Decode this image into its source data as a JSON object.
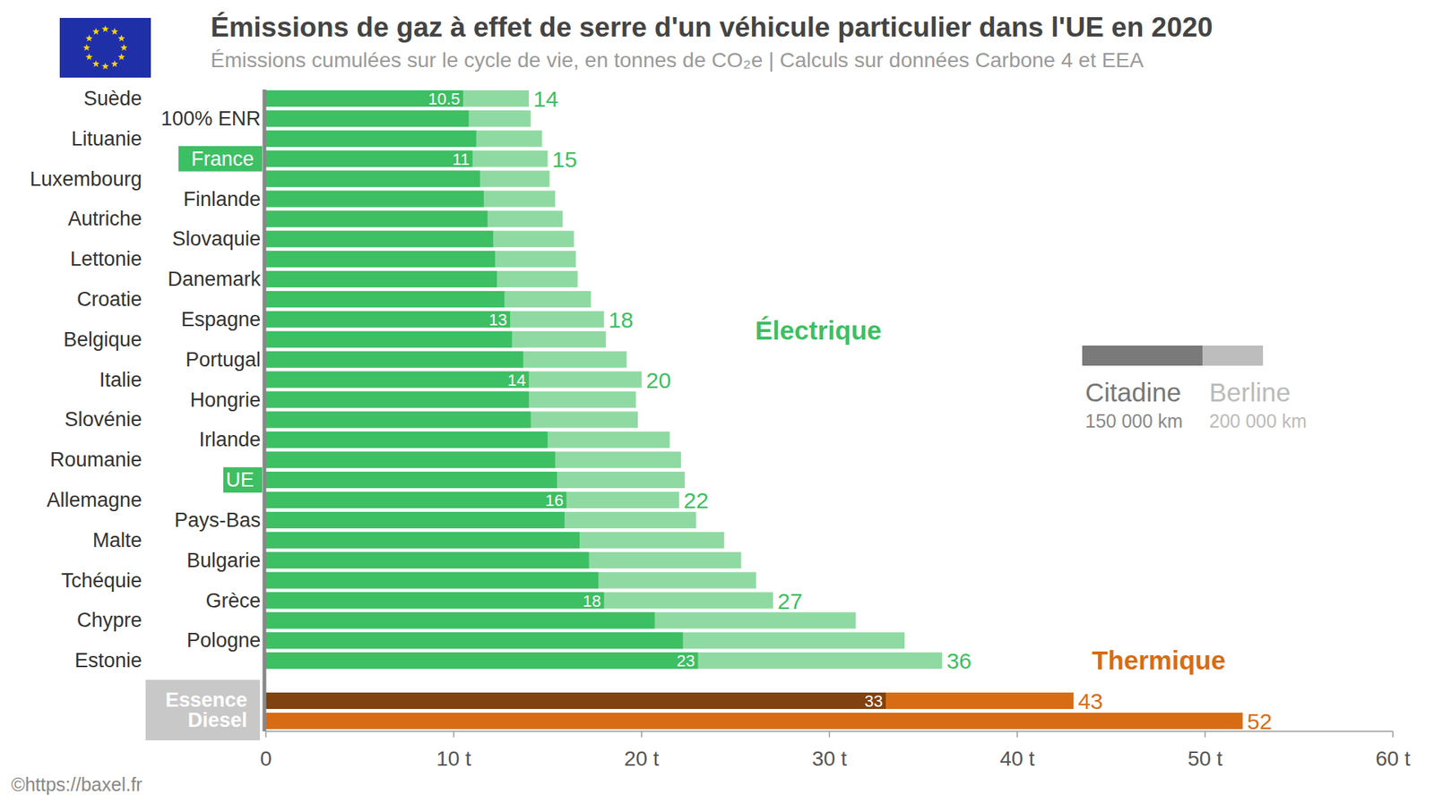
{
  "chart_data": {
    "type": "bar",
    "orientation": "horizontal",
    "title": "Émissions de gaz à effet de serre d'un véhicule particulier dans l'UE en 2020",
    "subtitle": "Émissions cumulées sur le cycle de vie, en tonnes de CO₂e  |  Calculs sur données Carbone 4 et EEA",
    "source": "©https://baxel.fr",
    "annotations": [
      "Électrique",
      "Thermique"
    ],
    "categories": [
      "Suède",
      "100% ENR",
      "Lituanie",
      "France",
      "Luxembourg",
      "Finlande",
      "Autriche",
      "Slovaquie",
      "Lettonie",
      "Danemark",
      "Croatie",
      "Espagne",
      "Belgique",
      "Portugal",
      "Italie",
      "Hongrie",
      "Slovénie",
      "Irlande",
      "Roumanie",
      "UE",
      "Allemagne",
      "Pays-Bas",
      "Malte",
      "Bulgarie",
      "Tchéquie",
      "Grèce",
      "Chypre",
      "Pologne",
      "Estonie",
      "Essence",
      "Diesel"
    ],
    "series": [
      {
        "name": "Citadine",
        "distance": "150 000 km",
        "color": "#7a7a7a",
        "colors": [
          "#3dbf63",
          "#3dbf63",
          "#3dbf63",
          "#3dbf63",
          "#3dbf63",
          "#3dbf63",
          "#3dbf63",
          "#3dbf63",
          "#3dbf63",
          "#3dbf63",
          "#3dbf63",
          "#3dbf63",
          "#3dbf63",
          "#3dbf63",
          "#3dbf63",
          "#3dbf63",
          "#3dbf63",
          "#3dbf63",
          "#3dbf63",
          "#3dbf63",
          "#3dbf63",
          "#3dbf63",
          "#3dbf63",
          "#3dbf63",
          "#3dbf63",
          "#3dbf63",
          "#3dbf63",
          "#3dbf63",
          "#3dbf63",
          "#7f4210",
          "#7f4210"
        ],
        "values": [
          10.5,
          10.8,
          11.2,
          11,
          11.4,
          11.6,
          11.8,
          12.1,
          12.2,
          12.3,
          12.7,
          13,
          13.1,
          13.7,
          14,
          14.0,
          14.1,
          15.0,
          15.4,
          15.5,
          16,
          15.9,
          16.7,
          17.2,
          17.7,
          18,
          20.7,
          22.2,
          23,
          33,
          null
        ],
        "value_labels": [
          "10.5",
          null,
          null,
          "11",
          null,
          null,
          null,
          null,
          null,
          null,
          null,
          "13",
          null,
          null,
          "14",
          null,
          null,
          null,
          null,
          null,
          "16",
          null,
          null,
          null,
          null,
          "18",
          null,
          null,
          "23",
          "33",
          null
        ]
      },
      {
        "name": "Berline",
        "distance": "200 000 km",
        "color": "#bdbdbd",
        "colors": [
          "#8fdaa2",
          "#8fdaa2",
          "#8fdaa2",
          "#8fdaa2",
          "#8fdaa2",
          "#8fdaa2",
          "#8fdaa2",
          "#8fdaa2",
          "#8fdaa2",
          "#8fdaa2",
          "#8fdaa2",
          "#8fdaa2",
          "#8fdaa2",
          "#8fdaa2",
          "#8fdaa2",
          "#8fdaa2",
          "#8fdaa2",
          "#8fdaa2",
          "#8fdaa2",
          "#8fdaa2",
          "#8fdaa2",
          "#8fdaa2",
          "#8fdaa2",
          "#8fdaa2",
          "#8fdaa2",
          "#8fdaa2",
          "#8fdaa2",
          "#8fdaa2",
          "#8fdaa2",
          "#d86c14",
          "#d86c14"
        ],
        "values": [
          14,
          14.1,
          14.7,
          15,
          15.1,
          15.4,
          15.8,
          16.4,
          16.5,
          16.6,
          17.3,
          18,
          18.1,
          19.2,
          20,
          19.7,
          19.8,
          21.5,
          22.1,
          22.3,
          22,
          22.9,
          24.4,
          25.3,
          26.1,
          27,
          31.4,
          34.0,
          36,
          43,
          52
        ],
        "value_labels": [
          "14",
          null,
          null,
          "15",
          null,
          null,
          null,
          null,
          null,
          null,
          null,
          "18",
          null,
          null,
          "20",
          null,
          null,
          null,
          null,
          null,
          "22",
          null,
          null,
          null,
          null,
          "27",
          null,
          null,
          "36",
          "43",
          "52"
        ]
      }
    ],
    "data_labels": true,
    "xlim": [
      0,
      60
    ],
    "xticks": [
      0,
      {
        "value": 10,
        "label": "10 t"
      },
      {
        "value": 20,
        "label": "20 t"
      },
      {
        "value": 30,
        "label": "30 t"
      },
      {
        "value": 40,
        "label": "40 t"
      },
      {
        "value": 50,
        "label": "50 t"
      },
      {
        "value": 60,
        "label": "60 t"
      }
    ],
    "grid": false,
    "legend": "right"
  }
}
